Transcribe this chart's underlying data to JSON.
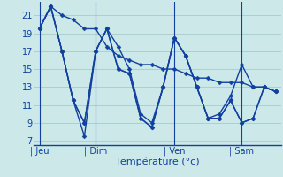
{
  "background_color": "#cce8e8",
  "grid_color": "#aad0d0",
  "line_color": "#1040a0",
  "marker_size": 2.5,
  "line_width": 1.0,
  "xlabel": "Température (°c)",
  "ylim": [
    6.5,
    22.5
  ],
  "yticks": [
    7,
    9,
    11,
    13,
    15,
    17,
    19,
    21
  ],
  "day_labels": [
    "| Jeu",
    "| Dim",
    "| Ven",
    "| Sam"
  ],
  "day_positions": [
    0,
    5,
    12,
    18
  ],
  "vline_positions": [
    0,
    5,
    12,
    18
  ],
  "n": 22,
  "series": [
    [
      19.5,
      22.0,
      21.0,
      20.5,
      19.5,
      19.5,
      17.5,
      16.5,
      16.0,
      15.5,
      15.5,
      15.0,
      15.0,
      14.5,
      14.0,
      14.0,
      13.5,
      13.5,
      13.5,
      13.0,
      13.0,
      12.5
    ],
    [
      19.5,
      22.0,
      17.0,
      11.5,
      9.0,
      17.0,
      19.5,
      17.5,
      15.0,
      10.0,
      9.0,
      13.0,
      18.5,
      16.5,
      13.0,
      9.5,
      10.0,
      12.0,
      15.5,
      13.0,
      13.0,
      12.5
    ],
    [
      19.5,
      22.0,
      17.0,
      11.5,
      9.0,
      17.0,
      19.5,
      15.0,
      14.5,
      9.5,
      8.5,
      13.0,
      18.5,
      16.5,
      13.0,
      9.5,
      9.5,
      11.5,
      9.0,
      9.5,
      13.0,
      12.5
    ],
    [
      19.5,
      22.0,
      17.0,
      11.5,
      7.5,
      17.0,
      19.5,
      15.0,
      14.5,
      9.5,
      8.5,
      13.0,
      18.5,
      16.5,
      13.0,
      9.5,
      9.5,
      11.5,
      9.0,
      9.5,
      13.0,
      12.5
    ]
  ]
}
